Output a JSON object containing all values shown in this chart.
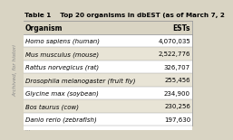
{
  "title": "Table 1    Top 20 organisms in dbEST (as of March 7, 2",
  "headers": [
    "Organism",
    "ESTs"
  ],
  "rows": [
    [
      "Homo sapiens (human)",
      "4,070,035"
    ],
    [
      "Mus musculus (mouse)",
      "2,522,776"
    ],
    [
      "Rattus norvegicus (rat)",
      "326,707"
    ],
    [
      "Drosophila melanogaster (fruit fly)",
      "255,456"
    ],
    [
      "Glycine max (soybean)",
      "234,900"
    ],
    [
      "Bos taurus (cow)",
      "230,256"
    ],
    [
      "Danio rerio (zebrafish)",
      "197,630"
    ]
  ],
  "partial_row": [
    "...",
    "..."
  ],
  "bg_color": "#d9d4c3",
  "table_bg": "#ece8dc",
  "row_alt_bg": "#d9d4c3",
  "border_color": "#999999",
  "title_fontsize": 5.2,
  "header_fontsize": 5.5,
  "row_fontsize": 5.0,
  "sidebar_text": "Archived, for histori",
  "sidebar_color": "#888888",
  "sidebar_fontsize": 4.2
}
